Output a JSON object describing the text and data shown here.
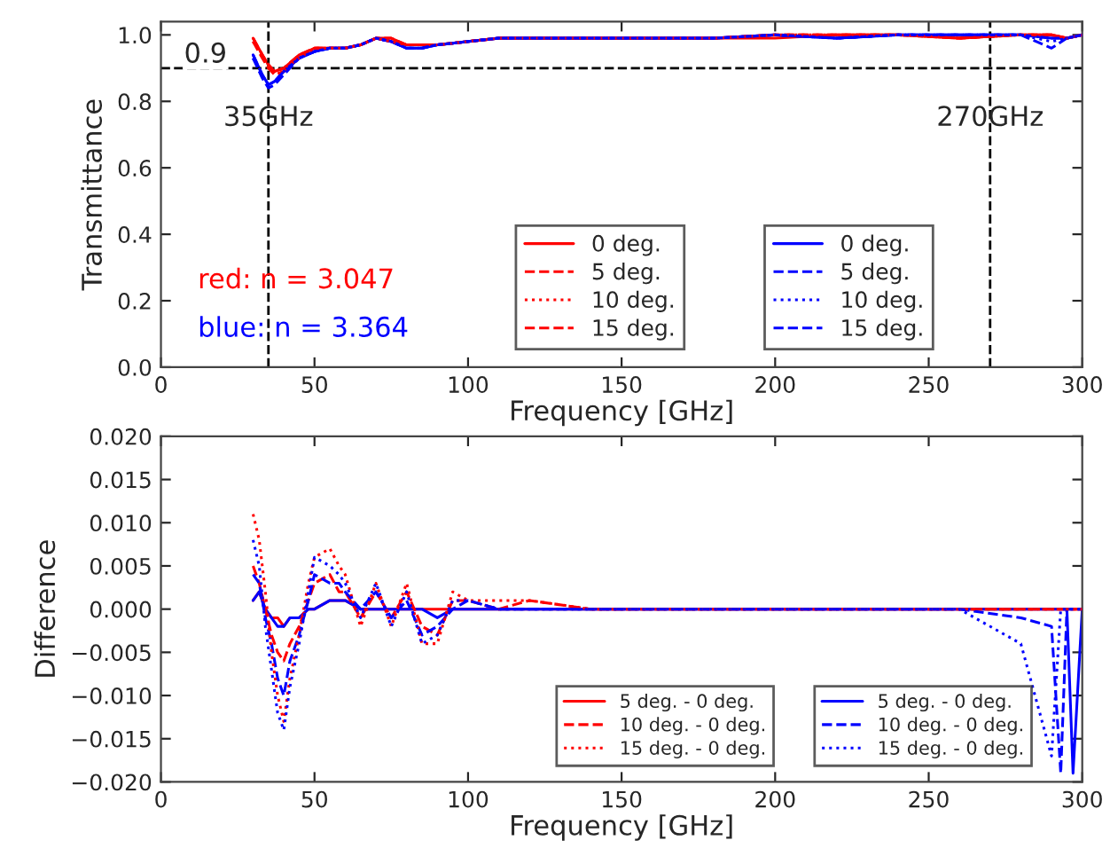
{
  "chart_data": [
    {
      "type": "line",
      "xlabel": "Frequency [GHz]",
      "ylabel": "Transmittance",
      "x": [
        30,
        33,
        35,
        37,
        40,
        45,
        50,
        55,
        60,
        65,
        70,
        75,
        80,
        85,
        90,
        100,
        110,
        120,
        140,
        160,
        180,
        200,
        220,
        240,
        260,
        280,
        290,
        295,
        300
      ],
      "xlim": [
        0,
        300
      ],
      "xticks": [
        0,
        50,
        100,
        150,
        200,
        250,
        300
      ],
      "ylim": [
        0,
        1.04
      ],
      "yticks": [
        {
          "value": 0,
          "label": "0.0"
        },
        {
          "value": 0.2,
          "label": "0.2"
        },
        {
          "value": 0.4,
          "label": "0.4"
        },
        {
          "value": 0.6,
          "label": "0.6"
        },
        {
          "value": 0.8,
          "label": "0.8"
        },
        {
          "value": 1.0,
          "label": "1.0"
        }
      ],
      "legend": "bottom right",
      "grid": false,
      "series": [
        {
          "name": "0 deg.",
          "color": "#ff0000",
          "line_style": "solid",
          "values": [
            0.99,
            0.94,
            0.91,
            0.89,
            0.9,
            0.94,
            0.96,
            0.96,
            0.96,
            0.97,
            0.99,
            0.99,
            0.97,
            0.97,
            0.97,
            0.98,
            0.99,
            0.99,
            0.99,
            0.99,
            0.99,
            0.99,
            1.0,
            1.0,
            0.99,
            1.0,
            1.0,
            0.99,
            1.0
          ]
        },
        {
          "name": "5 deg.",
          "color": "#ff0000",
          "line_style": "dashed",
          "values": [
            0.99,
            0.94,
            0.91,
            0.89,
            0.9,
            0.94,
            0.96,
            0.96,
            0.96,
            0.97,
            0.99,
            0.99,
            0.97,
            0.97,
            0.97,
            0.98,
            0.99,
            0.99,
            0.99,
            0.99,
            0.99,
            1.0,
            1.0,
            1.0,
            0.99,
            1.0,
            1.0,
            0.99,
            1.0
          ]
        },
        {
          "name": "10 deg.",
          "color": "#ff0000",
          "line_style": "dotted",
          "values": [
            0.98,
            0.94,
            0.9,
            0.89,
            0.9,
            0.93,
            0.96,
            0.96,
            0.96,
            0.97,
            0.99,
            0.98,
            0.97,
            0.97,
            0.97,
            0.98,
            0.99,
            0.99,
            0.99,
            0.99,
            0.99,
            1.0,
            1.0,
            1.0,
            0.99,
            1.0,
            1.0,
            0.99,
            1.0
          ]
        },
        {
          "name": "15 deg.",
          "color": "#ff0000",
          "line_style": "dashed",
          "values": [
            0.98,
            0.93,
            0.9,
            0.88,
            0.89,
            0.93,
            0.96,
            0.96,
            0.96,
            0.97,
            0.99,
            0.98,
            0.97,
            0.97,
            0.97,
            0.98,
            0.99,
            0.99,
            0.99,
            0.99,
            0.99,
            1.0,
            1.0,
            1.0,
            0.99,
            1.0,
            1.0,
            0.99,
            1.0
          ]
        },
        {
          "name": "0 deg.",
          "color": "#0000ff",
          "line_style": "solid",
          "values": [
            0.94,
            0.88,
            0.85,
            0.86,
            0.89,
            0.93,
            0.95,
            0.96,
            0.96,
            0.97,
            0.99,
            0.98,
            0.96,
            0.96,
            0.97,
            0.98,
            0.99,
            0.99,
            0.99,
            0.99,
            0.99,
            1.0,
            0.99,
            1.0,
            1.0,
            1.0,
            0.99,
            0.99,
            1.0
          ]
        },
        {
          "name": "5 deg.",
          "color": "#0000ff",
          "line_style": "dashed",
          "values": [
            0.94,
            0.88,
            0.85,
            0.86,
            0.89,
            0.93,
            0.95,
            0.96,
            0.96,
            0.97,
            0.99,
            0.98,
            0.96,
            0.96,
            0.97,
            0.98,
            0.99,
            0.99,
            0.99,
            0.99,
            0.99,
            1.0,
            0.99,
            1.0,
            1.0,
            1.0,
            0.99,
            0.99,
            1.0
          ]
        },
        {
          "name": "10 deg.",
          "color": "#0000ff",
          "line_style": "dotted",
          "values": [
            0.93,
            0.88,
            0.85,
            0.86,
            0.89,
            0.93,
            0.95,
            0.96,
            0.96,
            0.97,
            0.99,
            0.98,
            0.96,
            0.96,
            0.97,
            0.98,
            0.99,
            0.99,
            0.99,
            0.99,
            0.99,
            1.0,
            0.99,
            1.0,
            1.0,
            1.0,
            0.98,
            0.99,
            1.0
          ]
        },
        {
          "name": "15 deg.",
          "color": "#0000ff",
          "line_style": "dashed",
          "values": [
            0.93,
            0.87,
            0.84,
            0.85,
            0.88,
            0.93,
            0.95,
            0.96,
            0.96,
            0.97,
            0.99,
            0.98,
            0.96,
            0.96,
            0.97,
            0.98,
            0.99,
            0.99,
            0.99,
            0.99,
            0.99,
            1.0,
            0.99,
            1.0,
            1.0,
            1.0,
            0.96,
            0.99,
            1.0
          ]
        }
      ],
      "ref_lines": [
        {
          "axis": "y",
          "value": 0.9,
          "label": "0.9",
          "color": "#000000",
          "line_style": "dashed"
        },
        {
          "axis": "x",
          "value": 35,
          "label": "35GHz",
          "color": "#000000",
          "line_style": "dashed"
        },
        {
          "axis": "x",
          "value": 270,
          "label": "270GHz",
          "color": "#000000",
          "line_style": "dashed"
        }
      ],
      "annotations": [
        "red: n = 3.047",
        "blue: n = 3.364"
      ]
    },
    {
      "type": "line",
      "xlabel": "Frequency [GHz]",
      "ylabel": "Difference",
      "x": [
        30,
        32,
        34,
        36,
        38,
        40,
        42,
        45,
        48,
        50,
        55,
        58,
        60,
        65,
        70,
        75,
        80,
        85,
        90,
        95,
        100,
        110,
        120,
        140,
        160,
        180,
        200,
        220,
        240,
        260,
        280,
        290,
        293,
        295,
        297,
        300
      ],
      "xlim": [
        0,
        300
      ],
      "xticks": [
        0,
        50,
        100,
        150,
        200,
        250,
        300
      ],
      "ylim": [
        -0.02,
        0.02
      ],
      "yticks": [
        {
          "value": -0.02,
          "label": "−0.020"
        },
        {
          "value": -0.015,
          "label": "−0.015"
        },
        {
          "value": -0.01,
          "label": "−0.010"
        },
        {
          "value": -0.005,
          "label": "−0.005"
        },
        {
          "value": 0,
          "label": "0.000"
        },
        {
          "value": 0.005,
          "label": "0.005"
        },
        {
          "value": 0.01,
          "label": "0.010"
        },
        {
          "value": 0.015,
          "label": "0.015"
        },
        {
          "value": 0.02,
          "label": "0.020"
        }
      ],
      "legend": "bottom right",
      "grid": false,
      "series": [
        {
          "name": "5 deg. - 0 deg.",
          "color": "#ff0000",
          "line_style": "solid",
          "values": [
            0.001,
            0.002,
            0.0,
            -0.001,
            -0.001,
            -0.002,
            -0.001,
            -0.001,
            0.0,
            0.0,
            0.001,
            0.001,
            0.001,
            0.0,
            0.0,
            0.0,
            0.0,
            0.0,
            0.0,
            0.0,
            0.0,
            0.0,
            0.0,
            0.0,
            0.0,
            0.0,
            0.0,
            0.0,
            0.0,
            0.0,
            0.0,
            0.0,
            0.0,
            0.0,
            0.0,
            0.0
          ]
        },
        {
          "name": "10 deg. - 0 deg.",
          "color": "#ff0000",
          "line_style": "dashed",
          "values": [
            0.005,
            0.003,
            0.0,
            -0.003,
            -0.005,
            -0.006,
            -0.004,
            -0.002,
            0.001,
            0.003,
            0.004,
            0.002,
            0.002,
            -0.001,
            0.002,
            -0.001,
            0.002,
            -0.002,
            -0.003,
            0.001,
            0.001,
            0.0,
            0.001,
            0.0,
            0.0,
            0.0,
            0.0,
            0.0,
            0.0,
            0.0,
            0.0,
            0.0,
            0.0,
            0.0,
            0.0,
            0.0
          ]
        },
        {
          "name": "15 deg. - 0 deg.",
          "color": "#ff0000",
          "line_style": "dotted",
          "values": [
            0.011,
            0.008,
            0.002,
            -0.005,
            -0.01,
            -0.013,
            -0.008,
            -0.003,
            0.003,
            0.006,
            0.007,
            0.005,
            0.004,
            -0.002,
            0.003,
            -0.002,
            0.003,
            -0.004,
            -0.004,
            0.002,
            0.001,
            0.001,
            0.001,
            0.0,
            0.0,
            0.0,
            0.0,
            0.0,
            0.0,
            0.0,
            0.0,
            0.0,
            0.0,
            0.0,
            0.0,
            0.0
          ]
        },
        {
          "name": "5 deg. - 0 deg.",
          "color": "#0000ff",
          "line_style": "solid",
          "values": [
            0.001,
            0.002,
            0.0,
            -0.001,
            -0.002,
            -0.002,
            -0.001,
            -0.001,
            0.0,
            0.0,
            0.001,
            0.001,
            0.001,
            0.0,
            0.0,
            0.0,
            0.0,
            0.0,
            -0.001,
            0.0,
            0.0,
            0.0,
            0.0,
            0.0,
            0.0,
            0.0,
            0.0,
            0.0,
            0.0,
            0.0,
            0.0,
            0.0,
            0.0,
            0.0,
            -0.019,
            0.0
          ]
        },
        {
          "name": "10 deg. - 0 deg.",
          "color": "#0000ff",
          "line_style": "dashed",
          "values": [
            0.004,
            0.003,
            -0.001,
            -0.004,
            -0.008,
            -0.01,
            -0.006,
            -0.003,
            0.001,
            0.004,
            0.003,
            0.003,
            0.002,
            0.0,
            0.002,
            -0.001,
            0.001,
            -0.003,
            -0.002,
            0.0,
            0.001,
            0.0,
            0.0,
            0.0,
            0.0,
            0.0,
            0.0,
            0.0,
            0.0,
            0.0,
            -0.001,
            -0.002,
            -0.019,
            0.0,
            0.0,
            0.0
          ]
        },
        {
          "name": "15 deg. - 0 deg.",
          "color": "#0000ff",
          "line_style": "dotted",
          "values": [
            0.008,
            0.005,
            -0.002,
            -0.007,
            -0.012,
            -0.014,
            -0.009,
            -0.004,
            0.002,
            0.006,
            0.005,
            0.004,
            0.003,
            -0.001,
            0.003,
            -0.002,
            0.002,
            -0.004,
            -0.003,
            0.001,
            0.001,
            0.0,
            0.0,
            0.0,
            0.0,
            0.0,
            0.0,
            0.0,
            0.0,
            0.0,
            -0.004,
            -0.017,
            0.0,
            0.0,
            0.0,
            0.0
          ]
        }
      ]
    }
  ]
}
